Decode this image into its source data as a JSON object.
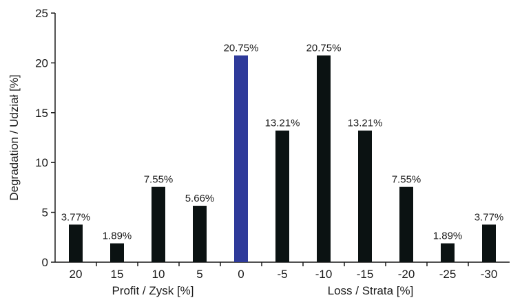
{
  "chart_data": {
    "type": "bar",
    "title": "",
    "xlabel": "",
    "ylabel": "Degradation / Udział [%]",
    "group_labels": [
      "Profit / Zysk [%]",
      "Loss / Strata [%]"
    ],
    "ylim": [
      0,
      25
    ],
    "yticks": [
      0,
      5,
      10,
      15,
      20,
      25
    ],
    "categories": [
      "20",
      "15",
      "10",
      "5",
      "0",
      "-5",
      "-10",
      "-15",
      "-20",
      "-25",
      "-30"
    ],
    "values": [
      3.77,
      1.89,
      7.55,
      5.66,
      20.75,
      13.21,
      20.75,
      13.21,
      7.55,
      1.89,
      3.77
    ],
    "data_labels": [
      "3.77%",
      "1.89%",
      "7.55%",
      "5.66%",
      "20.75%",
      "13.21%",
      "20.75%",
      "13.21%",
      "7.55%",
      "1.89%",
      "3.77%"
    ],
    "bar_colors": [
      "#0b1212",
      "#0b1212",
      "#0b1212",
      "#0b1212",
      "#2e3a9a",
      "#0b1212",
      "#0b1212",
      "#0b1212",
      "#0b1212",
      "#0b1212",
      "#0b1212"
    ],
    "grid": false,
    "legend": "none"
  }
}
